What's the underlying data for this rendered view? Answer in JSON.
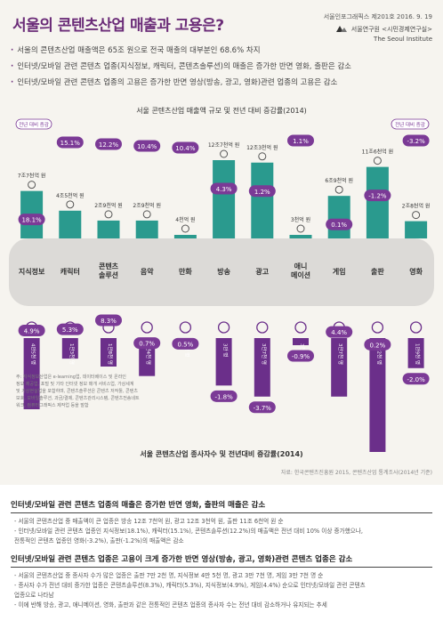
{
  "header": {
    "title": "서울의 콘텐츠산업 매출과 고용은?",
    "publication": "서울인포그래픽스 제201호 2016. 9. 19",
    "institute_ko": "서울연구원 <시민경제연구실>",
    "institute_en": "The Seoul Institute"
  },
  "bullets": [
    "서울의 콘텐츠산업 매출액은 65조 원으로 전국 매출의 대부분인 68.6% 차지",
    "인터넷/모바일 관련 콘텐츠 업종(지식정보, 캐릭터, 콘텐츠솔루션)의 매출은 증가한 반면 영화, 출판은 감소",
    "인터넷/모바일 관련 콘텐츠 업종의 고용은 증가한 반면 영상(방송, 광고, 영화)관련 업종의 고용은 감소"
  ],
  "chart_data": [
    {
      "type": "bar",
      "title": "서울 콘텐츠산업 매출액 규모 및 전년 대비 증감률(2014)",
      "legend_left": "전년 대비 증감",
      "legend_right": "전년 대비 증감",
      "categories": [
        "지식정보",
        "캐릭터",
        "콘텐츠\n솔루션",
        "음악",
        "만화",
        "방송",
        "광고",
        "애니\n메이션",
        "게임",
        "출판",
        "영화"
      ],
      "bar_labels": [
        "7조7천억 원",
        "4조5천억 원",
        "2조9천억 원",
        "2조9천억 원",
        "4천억 원",
        "12조7천억 원",
        "12조3천억 원",
        "3천억 원",
        "6조9천억 원",
        "11조6천억 원",
        "2조8천억 원"
      ],
      "values_trillion_krw": [
        7.7,
        4.5,
        2.9,
        2.9,
        0.4,
        12.7,
        12.3,
        0.3,
        6.9,
        11.6,
        2.8
      ],
      "growth_rate_labels": [
        "18.1%",
        "15.1%",
        "12.2%",
        "10.4%",
        "10.4%",
        "4.3%",
        "1.2%",
        "1.1%",
        "0.1%",
        "-1.2%",
        "-3.2%"
      ],
      "growth_rate": [
        18.1,
        15.1,
        12.2,
        10.4,
        10.4,
        4.3,
        1.2,
        1.1,
        0.1,
        -1.2,
        -3.2
      ],
      "note": "주: 지식정보산업은 e-learning업, 데이터베이스 및 온라인정보 제공업, 포털 및 기타 인터넷 정보 매개 서비스업, 가상세계 및 가상현실업을 포함하며, 콘텐츠솔루션은 콘텐츠 저작툴, 콘텐츠보호, 모바일솔루션, 과금/결제, 콘텐츠관리시스템, 콘텐츠전송네트워크, 컴퓨터그래픽스 제작업 등을 말함"
    },
    {
      "type": "bar",
      "title": "서울 콘텐츠산업 종사자수 및 전년대비 증감률(2014)",
      "categories": [
        "지식정보",
        "캐릭터",
        "콘텐츠\n솔루션",
        "음악",
        "만화",
        "방송",
        "광고",
        "애니\n메이션",
        "게임",
        "출판",
        "영화"
      ],
      "bar_labels": [
        "4만5천 명",
        "1만3천 명",
        "1만8천 명",
        "2만4천 명",
        "4천 명",
        "3만 명",
        "3만7천 명",
        "3천 명",
        "3만7천 명",
        "7만2천 명",
        "1만9천 명"
      ],
      "values_thousand_persons": [
        45,
        13,
        18,
        24,
        4,
        30,
        37,
        3,
        37,
        72,
        19
      ],
      "growth_rate_labels": [
        "4.9%",
        "5.3%",
        "8.3%",
        "0.7%",
        "0.5%",
        "-1.8%",
        "-3.7%",
        "-0.9%",
        "4.4%",
        "0.2%",
        "-2.0%"
      ],
      "growth_rate": [
        4.9,
        5.3,
        8.3,
        0.7,
        0.5,
        -1.8,
        -3.7,
        -0.9,
        4.4,
        0.2,
        -2.0
      ]
    }
  ],
  "source": "자료: 한국콘텐츠진흥원 2015, 콘텐츠산업 통계조사(2014년 기준)",
  "sections": [
    {
      "heading": "인터넷/모바일 관련 콘텐츠 업종의 매출은 증가한 반면 영화, 출판의 매출은 감소",
      "lines": [
        "- 서울의 콘텐츠산업 중 매출액이 큰 업종은 방송 12조 7천억 원, 광고 12조 3천억 원, 출판 11조 6천억 원 순",
        "- 인터넷/모바일 관련 콘텐츠 업종인 지식정보(18.1%), 캐릭터(15.1%), 콘텐츠솔루션(12.2%)의 매출액은 전년 대비 10% 이상 증가했으나,",
        "  전통적인 콘텐츠 업종인 영화(-3.2%), 출판(-1.2%)의 매출액은 감소"
      ]
    },
    {
      "heading": "인터넷/모바일 관련 콘텐츠 업종은 고용이 크게 증가한 반면 영상(방송, 광고, 영화)관련 콘텐츠 업종은 감소",
      "lines": [
        "- 서울의 콘텐츠산업 중 종사자 수가 많은 업종은 출판 7만 2천 명, 지식정보 4만 5천 명, 광고 3만 7천 명, 게임 3만 7천 명 순",
        "- 종사자 수가 전년 대비 증가한 업종은 콘텐츠솔루션(8.3%), 캐릭터(5.3%), 지식정보(4.9%), 게임(4.4%) 순으로 인터넷/모바일 관련 콘텐츠",
        "  업종으로 나타남",
        "- 이에 반해 방송, 광고, 애니메이션, 영화, 출판과 같은 전통적인 콘텐츠 업종의 종사자 수는 전년 대비 감소하거나 유지되는 추세"
      ]
    }
  ],
  "colors": {
    "teal_bar": "#2a9a8e",
    "purple_bar": "#6b2f8a",
    "rate_badge": "#7b3a96",
    "band": "#dcdad7",
    "title_purple": "#6b2c78"
  }
}
